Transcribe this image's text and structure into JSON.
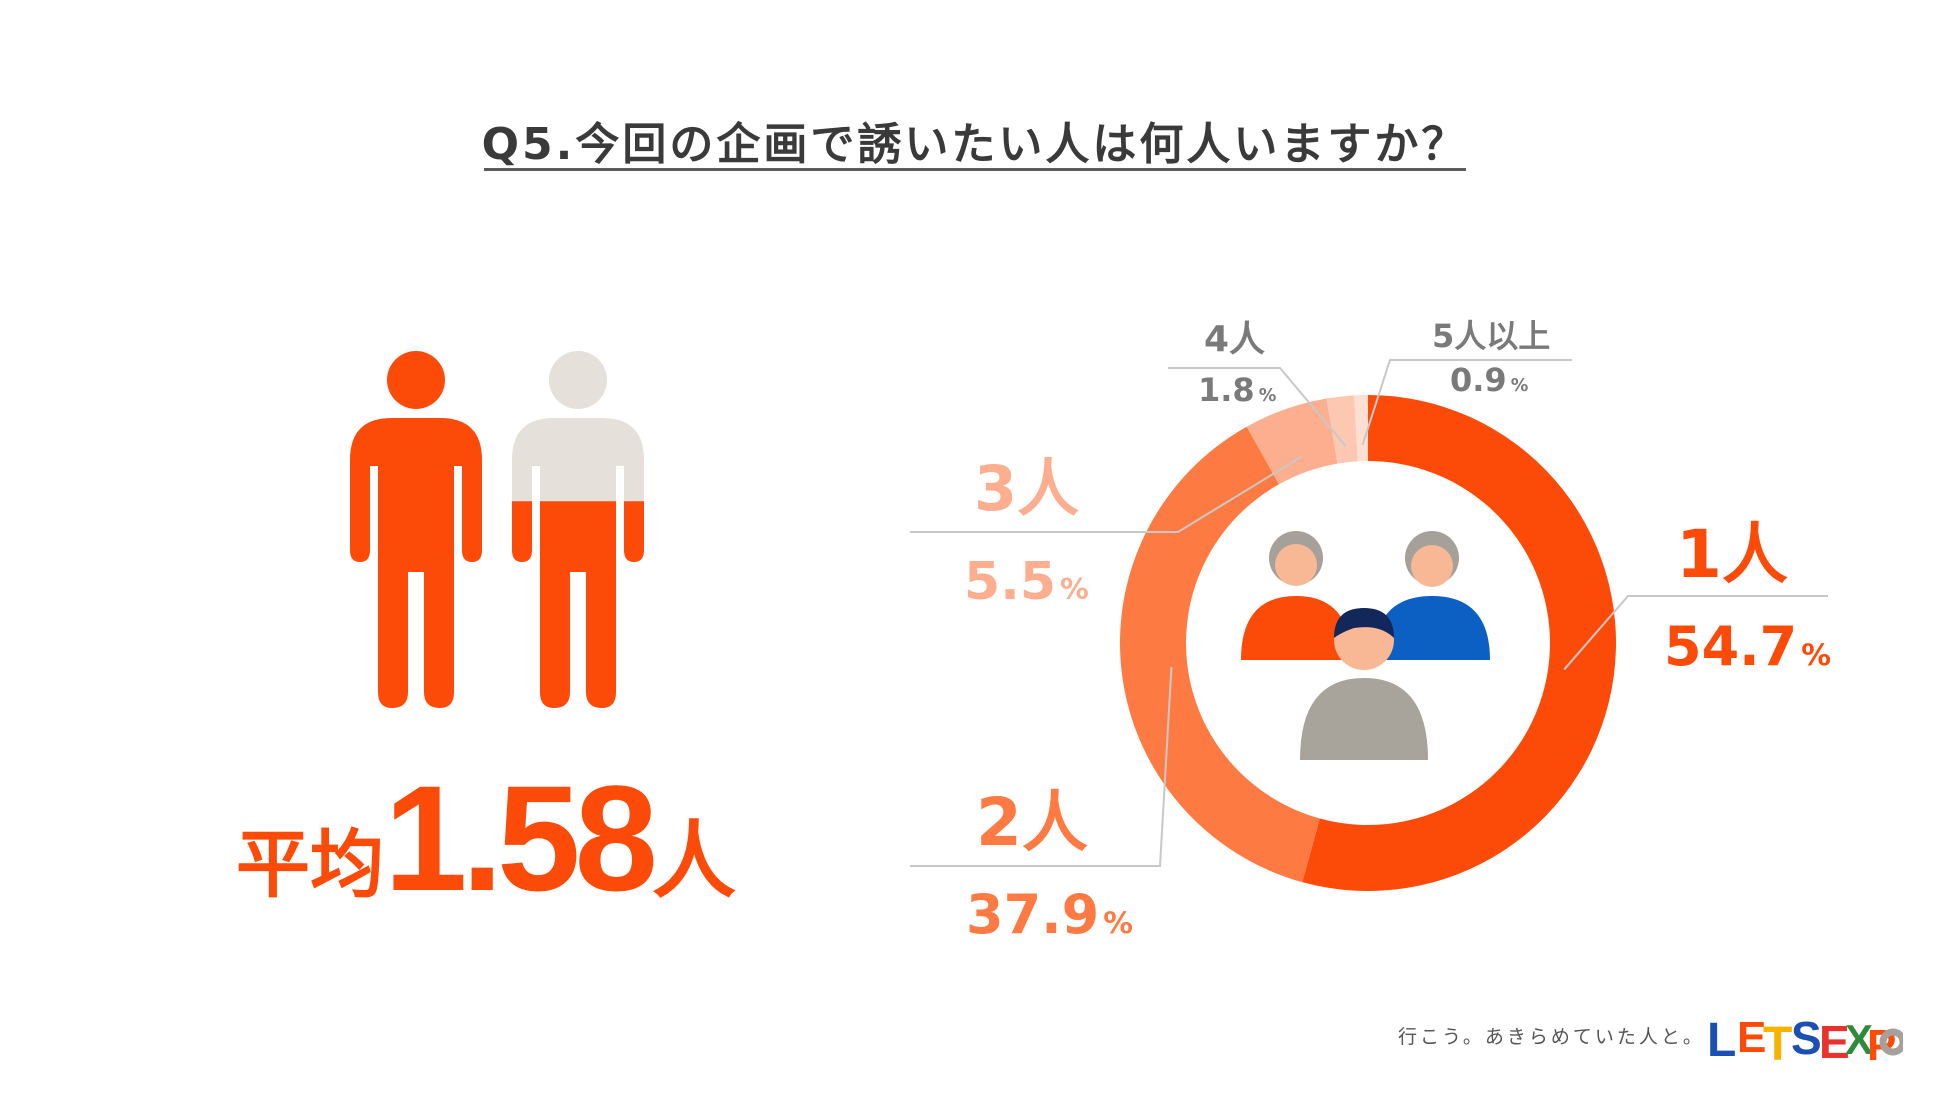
{
  "title": "Q5.今回の企画で誘いたい人は何人いますか？",
  "average": {
    "label": "平均",
    "value": "1.58",
    "unit": "人"
  },
  "chart_data": {
    "type": "pie",
    "donut": true,
    "title": "Q5.今回の企画で誘いたい人は何人いますか？",
    "categories": [
      "1人",
      "2人",
      "3人",
      "4人",
      "5人以上"
    ],
    "values": [
      54.7,
      37.9,
      5.5,
      1.8,
      0.9
    ],
    "percent_labels": [
      "54.7",
      "37.9",
      "5.5",
      "1.8",
      "0.9"
    ],
    "percent_symbol": "%",
    "colors": [
      "#fc4b08",
      "#fd7b42",
      "#fdae8e",
      "#fdc8b2",
      "#fedfd1"
    ],
    "label_colors": [
      "#fc4b08",
      "#fd7b42",
      "#fdae8e",
      "#7a7a7a",
      "#7a7a7a"
    ],
    "average_people": 1.58
  },
  "people_icon": {
    "filled_color": "#fc4b08",
    "empty_color": "#e5e0d9",
    "second_fill_fraction": 0.58
  },
  "footer": {
    "tagline": "行こう。あきらめていた人と。",
    "logo_text": "LETSEXPO"
  }
}
